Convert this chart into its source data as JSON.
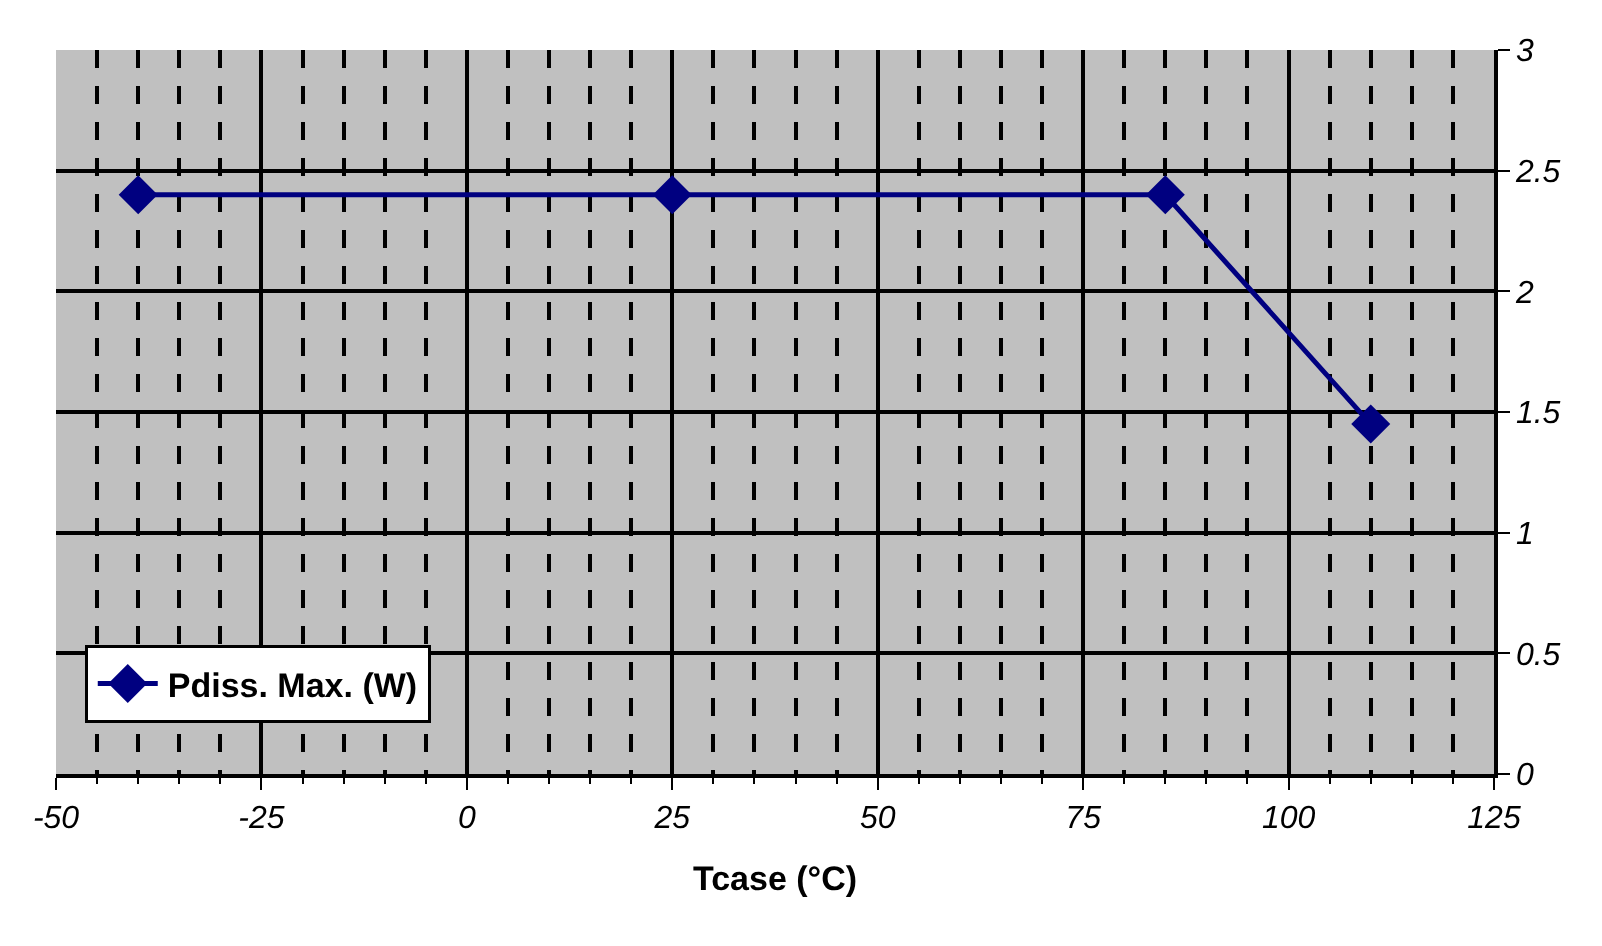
{
  "chart_data": {
    "type": "line",
    "xlabel": "Tcase (°C)",
    "x": [
      -40,
      25,
      85,
      110
    ],
    "series": [
      {
        "name": "Pdiss. Max. (W)",
        "color": "#000080",
        "values": [
          2.4,
          2.4,
          2.4,
          1.45
        ]
      }
    ],
    "xlim": [
      -50,
      125
    ],
    "xticks": [
      -50,
      {
        "value": -45,
        "label": null
      },
      {
        "value": -40,
        "label": null
      },
      {
        "value": -35,
        "label": null
      },
      {
        "value": -30,
        "label": null
      },
      -25,
      {
        "value": -20,
        "label": null
      },
      {
        "value": -15,
        "label": null
      },
      {
        "value": -10,
        "label": null
      },
      {
        "value": -5,
        "label": null
      },
      0,
      {
        "value": 5,
        "label": null
      },
      {
        "value": 10,
        "label": null
      },
      {
        "value": 15,
        "label": null
      },
      {
        "value": 20,
        "label": null
      },
      25,
      {
        "value": 30,
        "label": null
      },
      {
        "value": 35,
        "label": null
      },
      {
        "value": 40,
        "label": null
      },
      {
        "value": 45,
        "label": null
      },
      50,
      {
        "value": 55,
        "label": null
      },
      {
        "value": 60,
        "label": null
      },
      {
        "value": 65,
        "label": null
      },
      {
        "value": 70,
        "label": null
      },
      75,
      {
        "value": 80,
        "label": null
      },
      {
        "value": 85,
        "label": null
      },
      {
        "value": 90,
        "label": null
      },
      {
        "value": 95,
        "label": null
      },
      100,
      {
        "value": 105,
        "label": null
      },
      {
        "value": 110,
        "label": null
      },
      {
        "value": 115,
        "label": null
      },
      {
        "value": 120,
        "label": null
      },
      125
    ],
    "ylim": [
      0,
      3
    ],
    "yticks": [
      0,
      0.5,
      1,
      1.5,
      2,
      2.5,
      3
    ],
    "grid": true,
    "legend": "bottom left",
    "marker": "diamond",
    "line_style": "solid"
  }
}
